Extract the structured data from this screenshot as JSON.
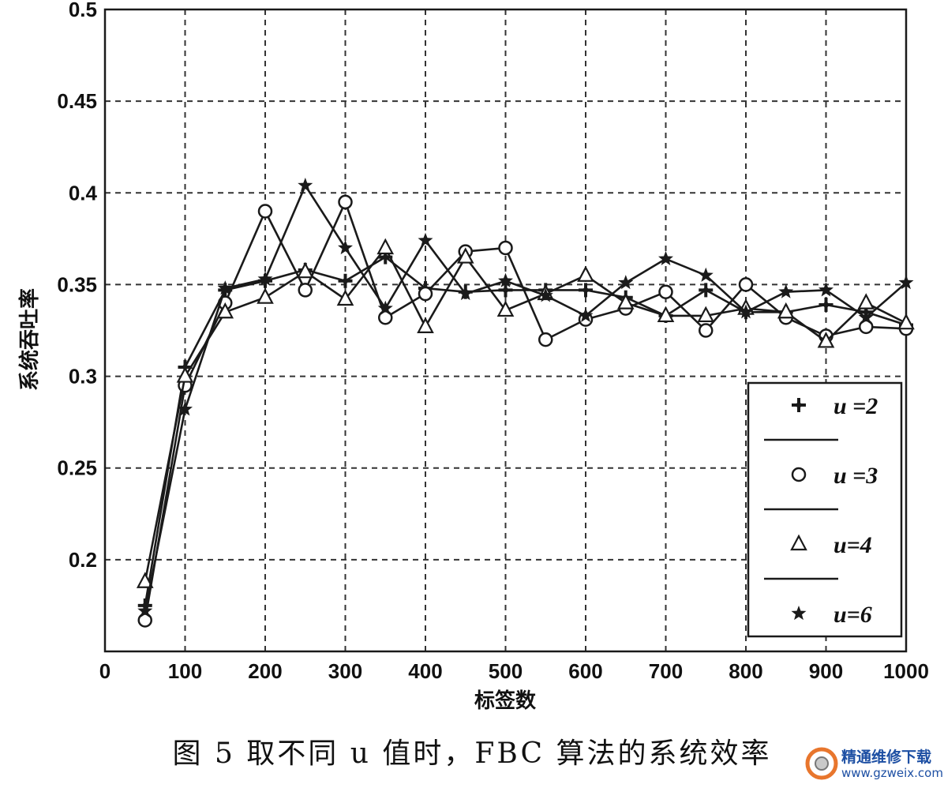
{
  "chart_data": {
    "type": "line",
    "title": "",
    "xlabel": "标签数",
    "ylabel": "系统吞吐率",
    "xlim": [
      0,
      1000
    ],
    "ylim": [
      0.15,
      0.5
    ],
    "x_ticks": [
      "0",
      "100",
      "200",
      "300",
      "400",
      "500",
      "600",
      "700",
      "800",
      "900",
      "1000"
    ],
    "y_ticks": [
      "0.2",
      "0.25",
      "0.3",
      "0.35",
      "0.4",
      "0.45",
      "0.5"
    ],
    "grid": true,
    "legend_position": "bottom-right",
    "x": [
      50,
      100,
      150,
      200,
      250,
      300,
      350,
      400,
      450,
      500,
      550,
      600,
      650,
      700,
      750,
      800,
      850,
      900,
      950,
      1000
    ],
    "series": [
      {
        "name": "u =2",
        "marker": "plus",
        "values": [
          0.175,
          0.305,
          0.347,
          0.352,
          0.358,
          0.352,
          0.365,
          0.348,
          0.346,
          0.347,
          0.347,
          0.347,
          0.343,
          0.333,
          0.347,
          0.335,
          0.335,
          0.339,
          0.335,
          0.328
        ]
      },
      {
        "name": "u =3",
        "marker": "circle",
        "values": [
          0.167,
          0.295,
          0.34,
          0.39,
          0.347,
          0.395,
          0.332,
          0.345,
          0.368,
          0.37,
          0.32,
          0.331,
          0.337,
          0.346,
          0.325,
          0.35,
          0.332,
          0.322,
          0.327,
          0.326
        ]
      },
      {
        "name": "u=4",
        "marker": "triangle",
        "values": [
          0.188,
          0.3,
          0.335,
          0.343,
          0.357,
          0.342,
          0.37,
          0.327,
          0.365,
          0.336,
          0.345,
          0.355,
          0.34,
          0.333,
          0.333,
          0.337,
          0.335,
          0.319,
          0.34,
          0.329
        ]
      },
      {
        "name": "u=6",
        "marker": "star",
        "values": [
          0.172,
          0.282,
          0.348,
          0.353,
          0.404,
          0.37,
          0.337,
          0.374,
          0.345,
          0.352,
          0.344,
          0.333,
          0.351,
          0.364,
          0.355,
          0.335,
          0.346,
          0.347,
          0.332,
          0.351
        ]
      }
    ]
  },
  "caption": "图 5 取不同 u 值时，FBC 算法的系统效率",
  "watermark": {
    "name": "精通维修下载",
    "url": "www.gzweix.com"
  },
  "colors": {
    "line": "#1a1a1a",
    "grid": "#333333",
    "watermark": "#1d4fa3",
    "watermark_logo": "#e8762d"
  }
}
